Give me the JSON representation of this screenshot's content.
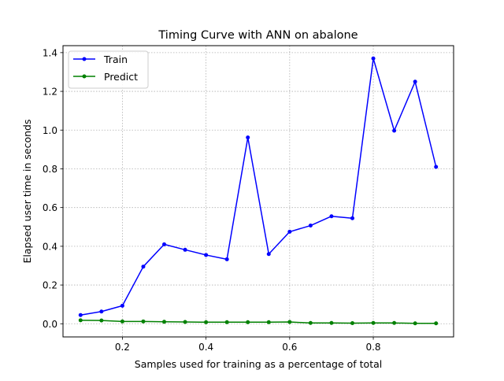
{
  "chart_data": {
    "type": "line",
    "title": "Timing Curve with ANN on abalone",
    "xlabel": "Samples used for training as a percentage of total",
    "ylabel": "Elapsed user time in seconds",
    "xlim": [
      0.058,
      0.992
    ],
    "ylim": [
      -0.068,
      1.436
    ],
    "xticks": [
      0.2,
      0.4,
      0.6,
      0.8
    ],
    "xtick_labels": [
      "0.2",
      "0.4",
      "0.6",
      "0.8"
    ],
    "yticks": [
      0.0,
      0.2,
      0.4,
      0.6,
      0.8,
      1.0,
      1.2,
      1.4
    ],
    "ytick_labels": [
      "0.0",
      "0.2",
      "0.4",
      "0.6",
      "0.8",
      "1.0",
      "1.2",
      "1.4"
    ],
    "grid": true,
    "legend_position": "top-left",
    "x": [
      0.1,
      0.15,
      0.2,
      0.25,
      0.3,
      0.35,
      0.4,
      0.45,
      0.5,
      0.55,
      0.6,
      0.65,
      0.7,
      0.75,
      0.8,
      0.85,
      0.9,
      0.95
    ],
    "series": [
      {
        "name": "Train",
        "color": "#0000ff",
        "values": [
          0.045,
          0.063,
          0.093,
          0.295,
          0.41,
          0.382,
          0.355,
          0.333,
          0.962,
          0.36,
          0.475,
          0.507,
          0.555,
          0.545,
          1.37,
          0.997,
          1.25,
          0.81
        ]
      },
      {
        "name": "Predict",
        "color": "#008000",
        "values": [
          0.018,
          0.017,
          0.012,
          0.012,
          0.01,
          0.009,
          0.008,
          0.008,
          0.008,
          0.008,
          0.009,
          0.004,
          0.004,
          0.003,
          0.004,
          0.004,
          0.002,
          0.002
        ]
      }
    ]
  }
}
